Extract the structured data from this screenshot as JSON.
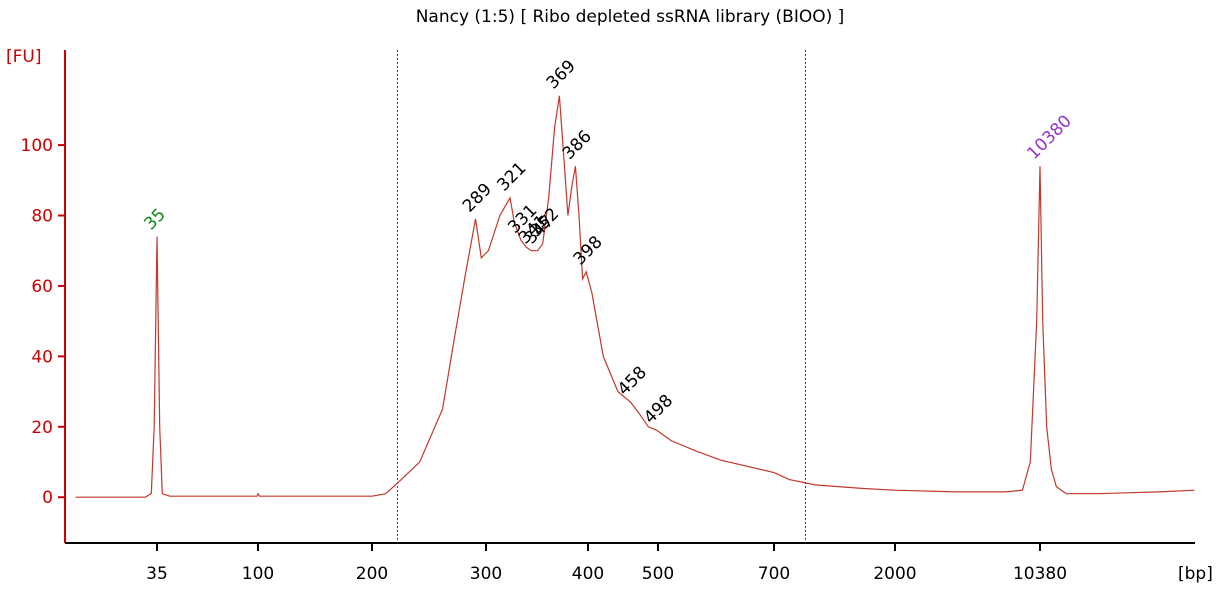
{
  "chart_data": {
    "type": "line",
    "title": "Nancy (1:5)  [ Ribo depleted ssRNA library (BIOO) ]",
    "y_label": "[FU]",
    "x_label": "[bp]",
    "ylim": [
      -13,
      127
    ],
    "yticks": [
      0,
      20,
      40,
      60,
      80,
      100
    ],
    "xticks": [
      35,
      100,
      200,
      300,
      400,
      500,
      700,
      2000,
      10380
    ],
    "axis_color": "#cc0000",
    "series": [
      {
        "color": "#c0392b",
        "x": [
          15,
          31,
          33,
          34,
          35,
          36,
          37,
          40,
          99,
          100,
          101,
          200,
          210,
          219,
          237,
          257,
          268,
          278,
          289,
          295,
          302,
          312,
          321,
          325,
          331,
          336,
          341,
          347,
          352,
          358,
          364,
          369,
          374,
          378,
          382,
          386,
          390,
          394,
          398,
          405,
          420,
          440,
          458,
          470,
          485,
          498,
          520,
          560,
          600,
          700,
          800,
          1000,
          1500,
          2000,
          4000,
          7000,
          8500,
          9300,
          10000,
          10380,
          10700,
          11200,
          11800,
          12500,
          14000,
          20000,
          40000,
          60000
        ],
        "values": [
          0,
          0,
          1,
          20,
          74,
          20,
          1,
          0.3,
          0.3,
          1,
          0.3,
          0.3,
          1,
          4,
          10,
          25,
          45,
          62,
          79,
          68,
          70,
          80,
          85,
          78,
          73,
          71,
          70,
          70,
          72,
          85,
          105,
          114,
          95,
          80,
          88,
          94,
          80,
          62,
          64,
          58,
          40,
          30,
          27,
          24,
          20,
          19,
          16,
          13,
          10.5,
          7,
          5,
          3.5,
          2.5,
          2,
          1.5,
          1.5,
          2,
          10,
          50,
          94,
          50,
          20,
          8,
          3,
          1,
          1,
          1.5,
          2
        ]
      }
    ],
    "peaks": [
      35,
      289,
      321,
      331,
      341,
      347,
      352,
      369,
      386,
      398,
      458,
      498,
      10380
    ],
    "peak_colors": [
      "#118811",
      "#000",
      "#000",
      "#000",
      "#000",
      "#000",
      "#000",
      "#000",
      "#000",
      "#000",
      "#000",
      "#000",
      "#9933cc"
    ],
    "regions": [
      219,
      920
    ],
    "region_color": "#3333cc"
  }
}
